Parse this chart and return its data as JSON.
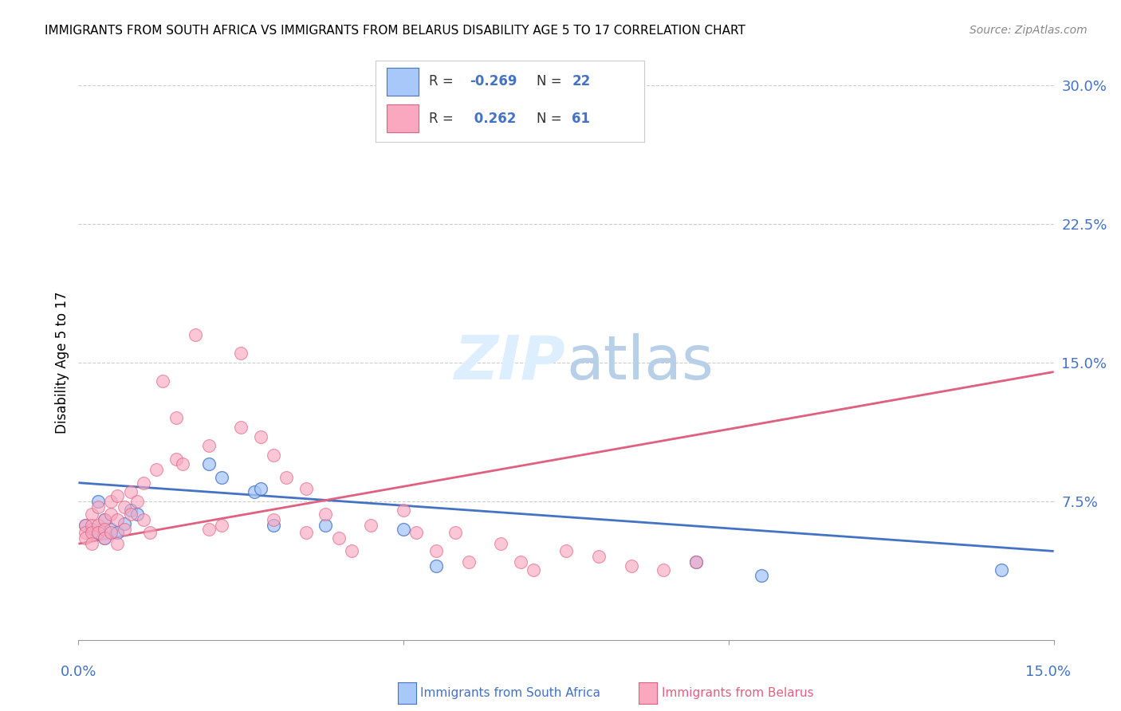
{
  "title": "IMMIGRANTS FROM SOUTH AFRICA VS IMMIGRANTS FROM BELARUS DISABILITY AGE 5 TO 17 CORRELATION CHART",
  "source": "Source: ZipAtlas.com",
  "ylabel": "Disability Age 5 to 17",
  "xlim": [
    0.0,
    0.15
  ],
  "ylim": [
    0.0,
    0.3
  ],
  "ytick_vals": [
    0.075,
    0.15,
    0.225,
    0.3
  ],
  "ytick_labels": [
    "7.5%",
    "15.0%",
    "22.5%",
    "30.0%"
  ],
  "blue_color": "#a8c8fa",
  "pink_color": "#f9a8c0",
  "blue_edge_color": "#4472c4",
  "pink_edge_color": "#e06080",
  "blue_line_color": "#4472c4",
  "pink_line_color": "#e06080",
  "axis_label_color": "#4472c4",
  "background_color": "#ffffff",
  "grid_color": "#cccccc",
  "watermark_color": "#ddeeff",
  "blue_trend_x": [
    0.0,
    0.15
  ],
  "blue_trend_y": [
    0.085,
    0.048
  ],
  "pink_trend_x": [
    0.0,
    0.15
  ],
  "pink_trend_y": [
    0.052,
    0.145
  ],
  "south_africa_x": [
    0.001,
    0.002,
    0.003,
    0.004,
    0.005,
    0.006,
    0.007,
    0.008,
    0.009,
    0.02,
    0.022,
    0.027,
    0.03,
    0.038,
    0.05,
    0.055,
    0.095,
    0.105,
    0.142,
    0.003,
    0.004,
    0.028
  ],
  "south_africa_y": [
    0.062,
    0.06,
    0.058,
    0.065,
    0.06,
    0.058,
    0.063,
    0.07,
    0.068,
    0.095,
    0.088,
    0.08,
    0.062,
    0.062,
    0.06,
    0.04,
    0.042,
    0.035,
    0.038,
    0.075,
    0.055,
    0.082
  ],
  "belarus_x": [
    0.001,
    0.001,
    0.001,
    0.002,
    0.002,
    0.002,
    0.002,
    0.003,
    0.003,
    0.003,
    0.004,
    0.004,
    0.004,
    0.005,
    0.005,
    0.005,
    0.006,
    0.006,
    0.006,
    0.007,
    0.007,
    0.008,
    0.008,
    0.009,
    0.01,
    0.01,
    0.011,
    0.012,
    0.013,
    0.015,
    0.015,
    0.016,
    0.018,
    0.02,
    0.02,
    0.022,
    0.025,
    0.025,
    0.028,
    0.03,
    0.03,
    0.032,
    0.035,
    0.035,
    0.038,
    0.04,
    0.042,
    0.045,
    0.05,
    0.052,
    0.055,
    0.058,
    0.06,
    0.065,
    0.068,
    0.07,
    0.075,
    0.08,
    0.085,
    0.09,
    0.095
  ],
  "belarus_y": [
    0.062,
    0.058,
    0.055,
    0.068,
    0.062,
    0.058,
    0.052,
    0.072,
    0.062,
    0.058,
    0.065,
    0.06,
    0.055,
    0.075,
    0.068,
    0.058,
    0.078,
    0.065,
    0.052,
    0.072,
    0.06,
    0.08,
    0.068,
    0.075,
    0.085,
    0.065,
    0.058,
    0.092,
    0.14,
    0.12,
    0.098,
    0.095,
    0.165,
    0.105,
    0.06,
    0.062,
    0.155,
    0.115,
    0.11,
    0.1,
    0.065,
    0.088,
    0.082,
    0.058,
    0.068,
    0.055,
    0.048,
    0.062,
    0.07,
    0.058,
    0.048,
    0.058,
    0.042,
    0.052,
    0.042,
    0.038,
    0.048,
    0.045,
    0.04,
    0.038,
    0.042
  ],
  "legend_r_blue": "-0.269",
  "legend_n_blue": "22",
  "legend_r_pink": "0.262",
  "legend_n_pink": "61"
}
